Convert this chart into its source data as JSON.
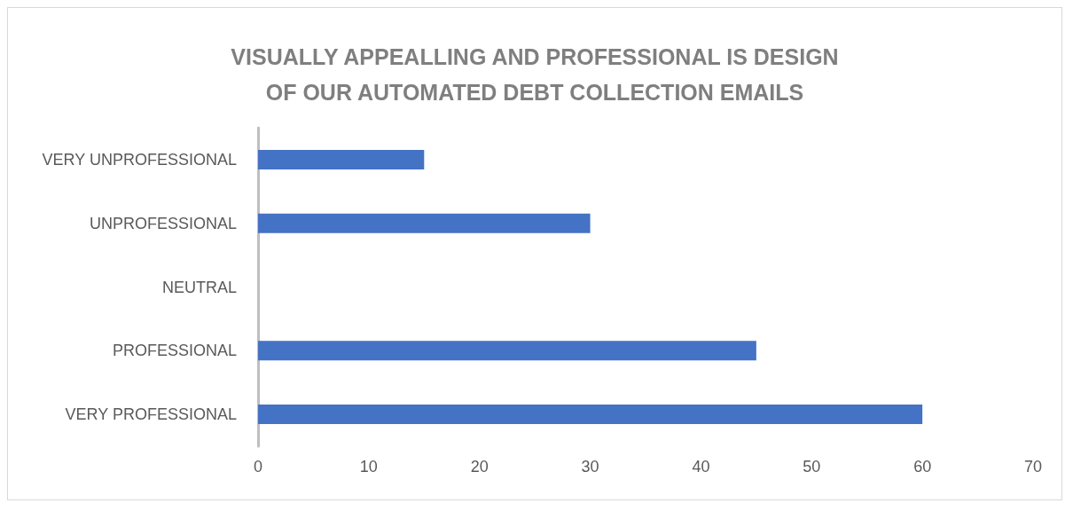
{
  "chart_data": {
    "type": "bar",
    "orientation": "horizontal",
    "title": "VISUALLY APPEALLING AND PROFESSIONAL IS DESIGN\nOF OUR AUTOMATED DEBT COLLECTION EMAILS",
    "categories": [
      "VERY UNPROFESSIONAL",
      "UNPROFESSIONAL",
      "NEUTRAL",
      "PROFESSIONAL",
      "VERY PROFESSIONAL"
    ],
    "values": [
      15,
      30,
      0,
      45,
      60
    ],
    "color": "#4472c4",
    "xlim": [
      0,
      70
    ],
    "xticks": [
      0,
      10,
      20,
      30,
      40,
      50,
      60,
      70
    ]
  }
}
